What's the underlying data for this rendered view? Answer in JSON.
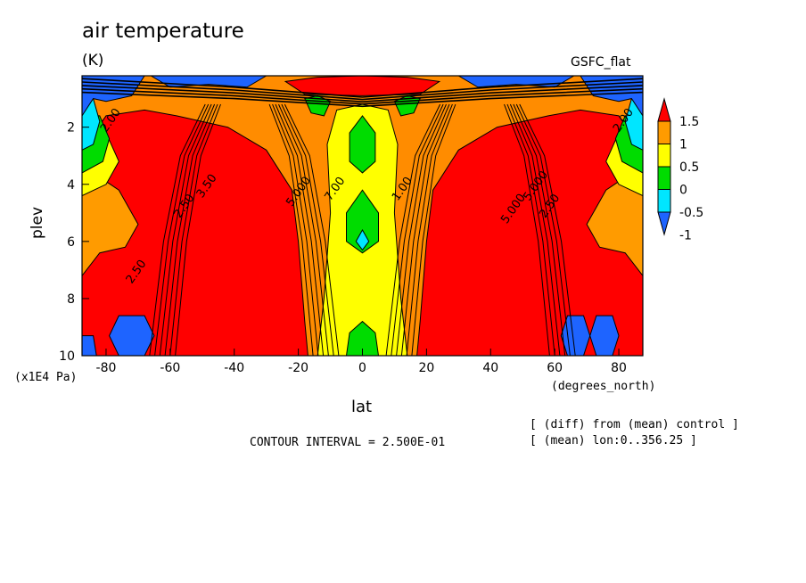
{
  "header": {
    "title": "air temperature",
    "units": "(K)",
    "source": "GSFC_flat"
  },
  "footer": {
    "interval": "CONTOUR INTERVAL = 2.500E-01",
    "note1": "[ (diff) from (mean) control ]",
    "note2": "[ (mean) lon:0..356.25 ]"
  },
  "chart_data": {
    "type": "heatmap",
    "title": "air temperature",
    "xlabel": "lat",
    "x_unit": "(degrees_north)",
    "ylabel": "plev",
    "y_unit": "(x1E4 Pa)",
    "xlim": [
      -87.5,
      87.5
    ],
    "ylim": [
      10,
      0.2
    ],
    "x_ticks": [
      -80,
      -60,
      -40,
      -20,
      0,
      20,
      40,
      60,
      80
    ],
    "x_tick_labels": [
      "-80",
      "-60",
      "-40",
      "-20",
      "0",
      "20",
      "40",
      "60",
      "80"
    ],
    "y_ticks": [
      2,
      4,
      6,
      8,
      10
    ],
    "y_tick_labels": [
      "2",
      "4",
      "6",
      "8",
      "10"
    ],
    "colorbar": {
      "tick_labels": [
        "1.5",
        "1",
        "0.5",
        "0",
        "-0.5",
        "-1"
      ],
      "colors": [
        "#1e64ff",
        "#00e6ff",
        "#00dc00",
        "#ffff00",
        "#ff9b00",
        "#ff0000"
      ],
      "bounds": [
        -1,
        -0.5,
        0,
        0.5,
        1,
        1.5
      ]
    },
    "contour_labels": [
      "2.00",
      "2.00",
      "2.50",
      "2.50",
      "2.50",
      "3.50",
      "5.000",
      "5.000",
      "5.000",
      "7.00",
      "1.00"
    ],
    "regions": [
      {
        "level": 1.5,
        "points": [
          [
            -87.5,
            10
          ],
          [
            -87.5,
            2.8
          ],
          [
            -80,
            1.6
          ],
          [
            -68,
            1.4
          ],
          [
            -58,
            1.6
          ],
          [
            -42,
            2.0
          ],
          [
            -30,
            2.8
          ],
          [
            -22,
            4.2
          ],
          [
            -20,
            6
          ],
          [
            -18,
            8.8
          ],
          [
            -17,
            10
          ]
        ]
      },
      {
        "level": 1.5,
        "points": [
          [
            87.5,
            10
          ],
          [
            87.5,
            2.8
          ],
          [
            80,
            1.6
          ],
          [
            68,
            1.4
          ],
          [
            58,
            1.6
          ],
          [
            42,
            2.0
          ],
          [
            30,
            2.8
          ],
          [
            22,
            4.2
          ],
          [
            20,
            6
          ],
          [
            18,
            8.8
          ],
          [
            17,
            10
          ]
        ]
      },
      {
        "level": 1.5,
        "points": [
          [
            -24,
            0.4
          ],
          [
            -14,
            0.25
          ],
          [
            0,
            0.2
          ],
          [
            14,
            0.25
          ],
          [
            24,
            0.4
          ],
          [
            18,
            0.85
          ],
          [
            0,
            0.9
          ],
          [
            -18,
            0.85
          ]
        ]
      },
      {
        "level": 1,
        "points": [
          [
            -87.5,
            7.2
          ],
          [
            -87.5,
            4.0
          ],
          [
            -84,
            3.6
          ],
          [
            -76,
            4.2
          ],
          [
            -70,
            5.4
          ],
          [
            -74,
            6.2
          ],
          [
            -82,
            6.4
          ]
        ]
      },
      {
        "level": 1,
        "points": [
          [
            87.5,
            7.2
          ],
          [
            87.5,
            4.0
          ],
          [
            84,
            3.6
          ],
          [
            76,
            4.2
          ],
          [
            70,
            5.4
          ],
          [
            74,
            6.2
          ],
          [
            82,
            6.4
          ]
        ]
      },
      {
        "level": 0.5,
        "points": [
          [
            -87.5,
            4.4
          ],
          [
            -87.5,
            2.2
          ],
          [
            -80,
            2.2
          ],
          [
            -76,
            3.2
          ],
          [
            -80,
            4.0
          ]
        ]
      },
      {
        "level": 0.5,
        "points": [
          [
            87.5,
            4.4
          ],
          [
            87.5,
            2.2
          ],
          [
            80,
            2.2
          ],
          [
            76,
            3.2
          ],
          [
            80,
            4.0
          ]
        ]
      },
      {
        "level": 0.5,
        "points": [
          [
            -14,
            10
          ],
          [
            -12,
            8
          ],
          [
            -10,
            5
          ],
          [
            -11,
            2.6
          ],
          [
            -8,
            1.4
          ],
          [
            0,
            1.2
          ],
          [
            8,
            1.4
          ],
          [
            11,
            2.6
          ],
          [
            10,
            5
          ],
          [
            12,
            8
          ],
          [
            14,
            10
          ]
        ]
      },
      {
        "level": 0,
        "points": [
          [
            -87.5,
            3.6
          ],
          [
            -87.5,
            1.6
          ],
          [
            -82,
            1.6
          ],
          [
            -79,
            2.4
          ],
          [
            -81,
            3.2
          ]
        ]
      },
      {
        "level": 0,
        "points": [
          [
            87.5,
            3.6
          ],
          [
            87.5,
            1.6
          ],
          [
            82,
            1.6
          ],
          [
            79,
            2.4
          ],
          [
            81,
            3.2
          ]
        ]
      },
      {
        "level": 0,
        "points": [
          [
            -4,
            2.2
          ],
          [
            0,
            1.6
          ],
          [
            4,
            2.2
          ],
          [
            4,
            3.2
          ],
          [
            0,
            3.6
          ],
          [
            -4,
            3.2
          ]
        ]
      },
      {
        "level": 0,
        "points": [
          [
            -5,
            5.0
          ],
          [
            0,
            4.2
          ],
          [
            5,
            5.0
          ],
          [
            5,
            6.0
          ],
          [
            0,
            6.4
          ],
          [
            -5,
            6.0
          ]
        ]
      },
      {
        "level": 0,
        "points": [
          [
            -5,
            10
          ],
          [
            -4,
            9.2
          ],
          [
            0,
            8.8
          ],
          [
            4,
            9.2
          ],
          [
            5,
            10
          ]
        ]
      },
      {
        "level": 0,
        "points": [
          [
            -18,
            1.0
          ],
          [
            -14,
            0.9
          ],
          [
            -10,
            1.1
          ],
          [
            -12,
            1.6
          ],
          [
            -16,
            1.5
          ]
        ]
      },
      {
        "level": 0,
        "points": [
          [
            18,
            1.0
          ],
          [
            14,
            0.9
          ],
          [
            10,
            1.1
          ],
          [
            12,
            1.6
          ],
          [
            16,
            1.5
          ]
        ]
      },
      {
        "level": -0.5,
        "points": [
          [
            -87.5,
            2.8
          ],
          [
            -87.5,
            1.0
          ],
          [
            -84,
            1.0
          ],
          [
            -82,
            1.8
          ],
          [
            -84,
            2.6
          ]
        ]
      },
      {
        "level": -0.5,
        "points": [
          [
            87.5,
            2.8
          ],
          [
            87.5,
            1.0
          ],
          [
            84,
            1.0
          ],
          [
            82,
            1.8
          ],
          [
            84,
            2.6
          ]
        ]
      },
      {
        "level": -0.5,
        "points": [
          [
            -2,
            6.0
          ],
          [
            0,
            5.6
          ],
          [
            2,
            6.0
          ],
          [
            0,
            6.3
          ]
        ]
      },
      {
        "level": -1,
        "points": [
          [
            -87.5,
            1.6
          ],
          [
            -87.5,
            0.2
          ],
          [
            -68,
            0.2
          ],
          [
            -72,
            0.9
          ],
          [
            -80,
            1.1
          ],
          [
            -84,
            1.0
          ]
        ]
      },
      {
        "level": -1,
        "points": [
          [
            87.5,
            1.6
          ],
          [
            87.5,
            0.2
          ],
          [
            68,
            0.2
          ],
          [
            72,
            0.9
          ],
          [
            80,
            1.1
          ],
          [
            84,
            1.0
          ]
        ]
      },
      {
        "level": -1,
        "points": [
          [
            -66,
            0.2
          ],
          [
            -30,
            0.2
          ],
          [
            -36,
            0.6
          ],
          [
            -48,
            0.5
          ],
          [
            -60,
            0.6
          ]
        ]
      },
      {
        "level": -1,
        "points": [
          [
            66,
            0.2
          ],
          [
            30,
            0.2
          ],
          [
            36,
            0.6
          ],
          [
            48,
            0.5
          ],
          [
            60,
            0.6
          ]
        ]
      },
      {
        "level": -1,
        "points": [
          [
            -76,
            8.6
          ],
          [
            -68,
            8.6
          ],
          [
            -65,
            9.3
          ],
          [
            -68,
            10
          ],
          [
            -76,
            10
          ],
          [
            -79,
            9.3
          ]
        ]
      },
      {
        "level": -1,
        "points": [
          [
            64,
            8.6
          ],
          [
            69,
            8.6
          ],
          [
            71,
            9.3
          ],
          [
            69,
            10
          ],
          [
            64,
            10
          ],
          [
            62,
            9.3
          ]
        ]
      },
      {
        "level": -1,
        "points": [
          [
            73,
            8.6
          ],
          [
            78,
            8.6
          ],
          [
            80,
            9.3
          ],
          [
            78,
            10
          ],
          [
            73,
            10
          ],
          [
            71,
            9.3
          ]
        ]
      },
      {
        "level": -1,
        "points": [
          [
            -87.5,
            10
          ],
          [
            -87.5,
            9.3
          ],
          [
            -84,
            9.3
          ],
          [
            -83,
            10
          ]
        ]
      }
    ]
  }
}
